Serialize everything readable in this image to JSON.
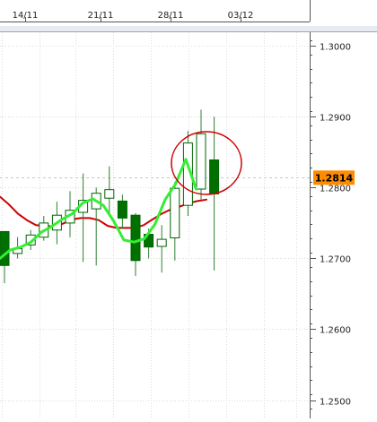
{
  "chart_data": {
    "type": "candlestick",
    "title": "",
    "xlabel": "",
    "ylabel": "",
    "x_tick_labels": [
      "14/11",
      "21/11",
      "28/11",
      "03/12"
    ],
    "y_tick_labels": [
      "1.3000",
      "1.2900",
      "1.2800",
      "1.2700",
      "1.2600",
      "1.2500"
    ],
    "y_ticks": [
      1.3,
      1.29,
      1.28,
      1.27,
      1.26,
      1.25
    ],
    "ylim": [
      1.2488,
      1.3013
    ],
    "grid": true,
    "current_price": 1.2814,
    "current_price_label": "1.2814",
    "candles": [
      {
        "open": 1.2738,
        "close": 1.269,
        "high": 1.2738,
        "low": 1.2665
      },
      {
        "open": 1.2707,
        "close": 1.2714,
        "high": 1.273,
        "low": 1.27
      },
      {
        "open": 1.2719,
        "close": 1.2733,
        "high": 1.274,
        "low": 1.2712
      },
      {
        "open": 1.273,
        "close": 1.275,
        "high": 1.276,
        "low": 1.2725
      },
      {
        "open": 1.274,
        "close": 1.2761,
        "high": 1.278,
        "low": 1.272
      },
      {
        "open": 1.275,
        "close": 1.2768,
        "high": 1.2795,
        "low": 1.273
      },
      {
        "open": 1.2765,
        "close": 1.2782,
        "high": 1.282,
        "low": 1.2695
      },
      {
        "open": 1.277,
        "close": 1.2792,
        "high": 1.28,
        "low": 1.269
      },
      {
        "open": 1.2785,
        "close": 1.2797,
        "high": 1.283,
        "low": 1.276
      },
      {
        "open": 1.2781,
        "close": 1.2757,
        "high": 1.279,
        "low": 1.2742
      },
      {
        "open": 1.2761,
        "close": 1.2697,
        "high": 1.2764,
        "low": 1.2675
      },
      {
        "open": 1.2734,
        "close": 1.2716,
        "high": 1.2742,
        "low": 1.27
      },
      {
        "open": 1.2717,
        "close": 1.2727,
        "high": 1.2747,
        "low": 1.268
      },
      {
        "open": 1.2729,
        "close": 1.2799,
        "high": 1.2808,
        "low": 1.2697
      },
      {
        "open": 1.2775,
        "close": 1.2863,
        "high": 1.288,
        "low": 1.276
      },
      {
        "open": 1.2798,
        "close": 1.2876,
        "high": 1.291,
        "low": 1.2783
      },
      {
        "open": 1.2839,
        "close": 1.2791,
        "high": 1.29,
        "low": 1.2683
      }
    ],
    "series": [
      {
        "color": "#cc0000",
        "values": [
          1.2787,
          1.2776,
          1.2763,
          1.2754,
          1.2747,
          1.2746,
          1.2745,
          1.2749,
          1.2755,
          1.2757,
          1.2757,
          1.2754,
          1.2746,
          1.2743,
          1.2743,
          1.2743,
          1.2747,
          1.2755,
          1.2763,
          1.2769,
          1.2773,
          1.2778,
          1.2781,
          1.2783
        ]
      },
      {
        "color": "#33ee33",
        "values": [
          1.27,
          1.2712,
          1.2716,
          1.2723,
          1.2737,
          1.2745,
          1.2755,
          1.2763,
          1.2778,
          1.2784,
          1.2775,
          1.2753,
          1.2726,
          1.2723,
          1.2728,
          1.2748,
          1.2783,
          1.2805,
          1.284,
          1.2798
        ]
      }
    ],
    "annotations": [
      {
        "type": "ellipse",
        "color": "#cc0000"
      }
    ]
  },
  "colors": {
    "up_candle_fill": "#ffffff",
    "down_candle_fill": "#007000",
    "candle_outline": "#006400",
    "wick": "#2f7f2f",
    "grid": "#dadada",
    "axis": "#555555",
    "price_tag_bg": "#ff8c00",
    "panel_bg": "#ffffff",
    "separator_bg": "#e6ecf2"
  }
}
